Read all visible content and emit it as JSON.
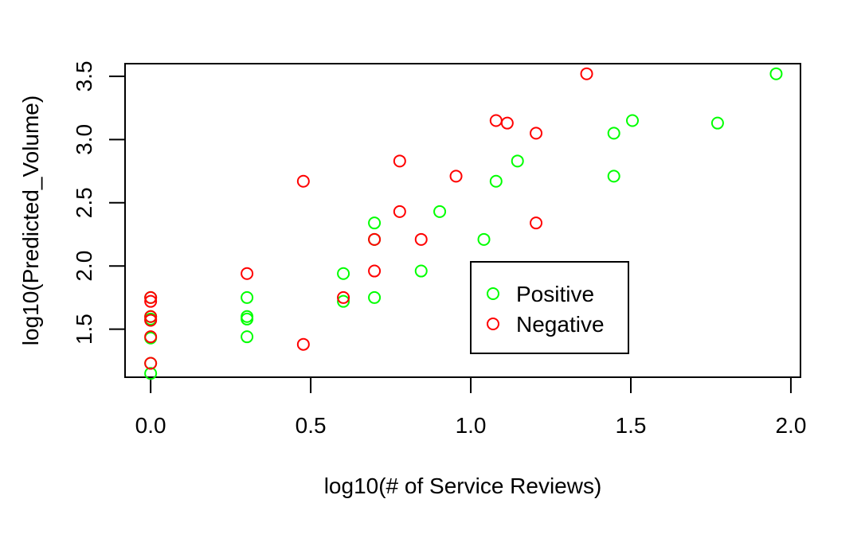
{
  "chart_data": {
    "type": "scatter",
    "title": "",
    "xlabel": "log10(# of Service Reviews)",
    "ylabel": "log10(Predicted_Volume)",
    "xlim": [
      -0.08,
      2.03
    ],
    "ylim": [
      1.12,
      3.6
    ],
    "x_ticks": [
      0.0,
      0.5,
      1.0,
      1.5,
      2.0
    ],
    "x_tick_labels": [
      "0.0",
      "0.5",
      "1.0",
      "1.5",
      "2.0"
    ],
    "y_ticks": [
      1.5,
      2.0,
      2.5,
      3.0,
      3.5
    ],
    "y_tick_labels": [
      "1.5",
      "2.0",
      "2.5",
      "3.0",
      "3.5"
    ],
    "grid": false,
    "legend": {
      "position": "inside-right",
      "entries": [
        "Positive",
        "Negative"
      ],
      "marker": "O"
    },
    "series": [
      {
        "name": "Positive",
        "color": "#00ff00",
        "x": [
          0.0,
          0.0,
          0.0,
          0.0,
          0.0,
          0.0,
          0.301,
          0.301,
          0.301,
          0.301,
          0.602,
          0.602,
          0.699,
          0.699,
          0.699,
          0.845,
          0.903,
          1.041,
          1.079,
          1.146,
          1.447,
          1.447,
          1.505,
          1.771,
          1.954
        ],
        "y": [
          1.15,
          1.23,
          1.43,
          1.58,
          1.6,
          1.75,
          1.44,
          1.58,
          1.6,
          1.75,
          1.72,
          1.94,
          1.75,
          2.21,
          2.34,
          1.96,
          2.43,
          2.21,
          2.67,
          2.83,
          2.71,
          3.05,
          3.15,
          3.13,
          3.52
        ]
      },
      {
        "name": "Negative",
        "color": "#ff0000",
        "x": [
          0.0,
          0.0,
          0.0,
          0.0,
          0.0,
          0.0,
          0.301,
          0.477,
          0.477,
          0.602,
          0.699,
          0.699,
          0.778,
          0.778,
          0.845,
          0.954,
          1.079,
          1.114,
          1.204,
          1.204,
          1.362
        ],
        "y": [
          1.23,
          1.44,
          1.57,
          1.6,
          1.72,
          1.75,
          1.94,
          1.38,
          2.67,
          1.75,
          1.96,
          2.21,
          2.43,
          2.83,
          2.21,
          2.71,
          3.15,
          3.13,
          3.05,
          2.34,
          3.52
        ]
      }
    ]
  }
}
